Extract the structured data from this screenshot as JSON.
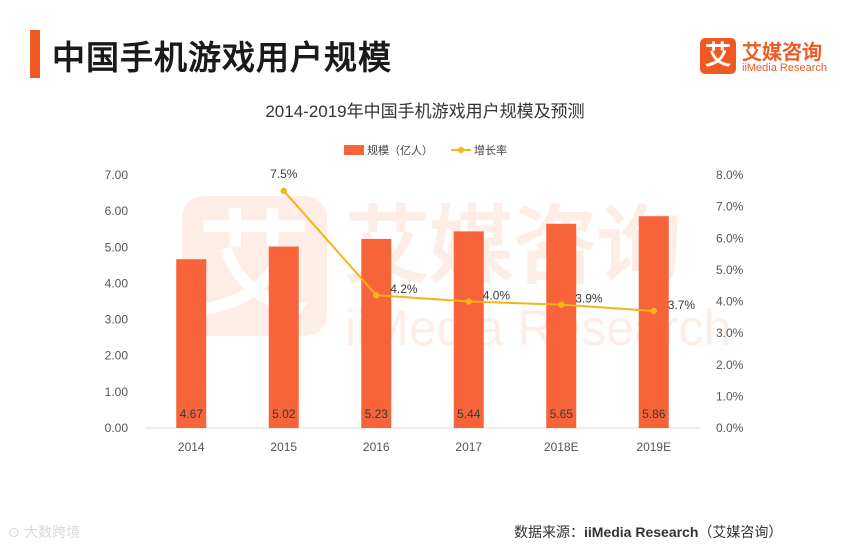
{
  "header": {
    "title": "中国手机游戏用户规模",
    "accent_color": "#f05a22"
  },
  "logo": {
    "glyph": "艾",
    "name_cn": "艾媒咨询",
    "name_en": "iiMedia Research",
    "color": "#f05a22"
  },
  "chart_data": {
    "type": "bar",
    "title": "2014-2019年中国手机游戏用户规模及预测",
    "categories": [
      "2014",
      "2015",
      "2016",
      "2017",
      "2018E",
      "2019E"
    ],
    "series": [
      {
        "name": "规模（亿人）",
        "kind": "bar",
        "axis": "left",
        "color": "#f7643a",
        "values": [
          4.67,
          5.02,
          5.23,
          5.44,
          5.65,
          5.86
        ],
        "labels": [
          "4.67",
          "5.02",
          "5.23",
          "5.44",
          "5.65",
          "5.86"
        ]
      },
      {
        "name": "增长率",
        "kind": "line",
        "axis": "right",
        "color": "#f5b417",
        "values": [
          null,
          7.5,
          4.2,
          4.0,
          3.9,
          3.7
        ],
        "labels": [
          "",
          "7.5%",
          "4.2%",
          "4.0%",
          "3.9%",
          "3.7%"
        ]
      }
    ],
    "y_left": {
      "range": [
        0,
        7
      ],
      "ticks": [
        "0.00",
        "1.00",
        "2.00",
        "3.00",
        "4.00",
        "5.00",
        "6.00",
        "7.00"
      ]
    },
    "y_right": {
      "range": [
        0,
        8
      ],
      "ticks": [
        "0.0%",
        "1.0%",
        "2.0%",
        "3.0%",
        "4.0%",
        "5.0%",
        "6.0%",
        "7.0%",
        "8.0%"
      ]
    },
    "legend_position": "top-center",
    "grid": false
  },
  "watermark": {
    "glyph": "艾",
    "text_cn": "艾媒咨询",
    "text_en": "iiMedia Research"
  },
  "footer": {
    "source_label": "数据来源：",
    "source_name": "iiMedia Research",
    "source_suffix": "（艾媒咨询）",
    "corner_mark": "大数跨境"
  }
}
